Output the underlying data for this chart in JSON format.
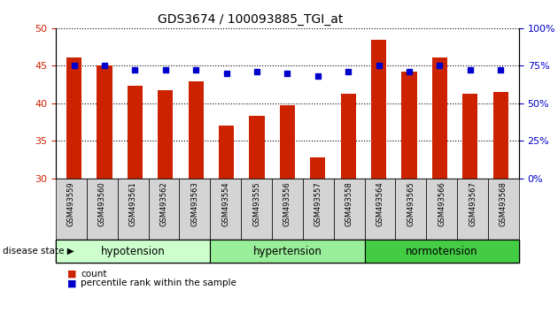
{
  "title": "GDS3674 / 100093885_TGI_at",
  "samples": [
    "GSM493559",
    "GSM493560",
    "GSM493561",
    "GSM493562",
    "GSM493563",
    "GSM493554",
    "GSM493555",
    "GSM493556",
    "GSM493557",
    "GSM493558",
    "GSM493564",
    "GSM493565",
    "GSM493566",
    "GSM493567",
    "GSM493568"
  ],
  "counts": [
    46.1,
    45.0,
    42.3,
    41.8,
    42.9,
    37.0,
    38.3,
    39.8,
    32.8,
    41.3,
    48.5,
    44.2,
    46.1,
    41.3,
    41.5
  ],
  "percentiles": [
    75,
    75,
    72,
    72,
    72,
    70,
    71,
    70,
    68,
    71,
    75,
    71,
    75,
    72,
    72
  ],
  "groups": [
    {
      "label": "hypotension",
      "start": 0,
      "end": 4,
      "color": "#ccffcc"
    },
    {
      "label": "hypertension",
      "start": 5,
      "end": 9,
      "color": "#99ee99"
    },
    {
      "label": "normotension",
      "start": 10,
      "end": 14,
      "color": "#44cc44"
    }
  ],
  "bar_color": "#cc2200",
  "dot_color": "#0000cc",
  "ylim_left": [
    30,
    50
  ],
  "ylim_right": [
    0,
    100
  ],
  "yticks_left": [
    30,
    35,
    40,
    45,
    50
  ],
  "yticks_right": [
    0,
    25,
    50,
    75,
    100
  ],
  "bar_width": 0.5,
  "background_color": "#ffffff",
  "gray_bg": "#d4d4d4"
}
